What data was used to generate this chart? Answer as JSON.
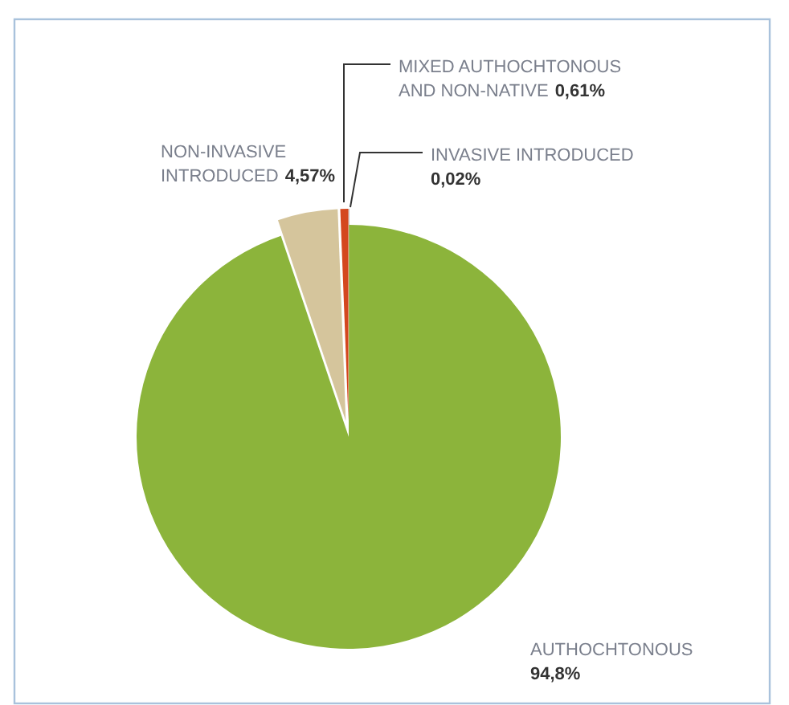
{
  "chart_data": {
    "type": "pie",
    "categories": [
      "INVASIVE INTRODUCED",
      "AUTHOCHTONOUS",
      "NON-INVASIVE INTRODUCED",
      "MIXED AUTHOCHTONOUS AND NON-NATIVE"
    ],
    "values": [
      0.02,
      94.8,
      4.57,
      0.61
    ],
    "colors": [
      "#2e3440",
      "#8cb43b",
      "#d5c59c",
      "#d4471f"
    ],
    "value_labels": [
      "0,02%",
      "94,8%",
      "4,57%",
      "0,61%"
    ]
  }
}
